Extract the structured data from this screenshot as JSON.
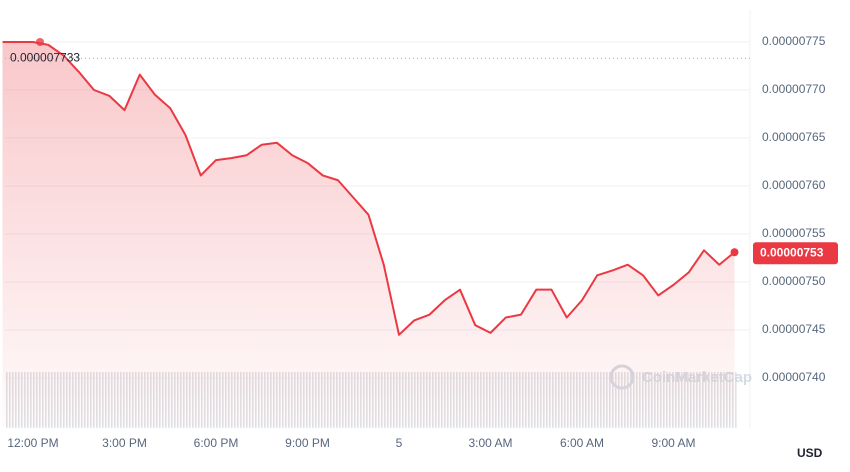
{
  "chart_data": {
    "type": "line",
    "categories": [
      null,
      null,
      "12:00 PM",
      null,
      null,
      null,
      null,
      null,
      "3:00 PM",
      null,
      null,
      null,
      null,
      null,
      "6:00 PM",
      null,
      null,
      null,
      null,
      null,
      "9:00 PM",
      null,
      null,
      null,
      null,
      null,
      "5",
      null,
      null,
      null,
      null,
      null,
      "3:00 AM",
      null,
      null,
      null,
      null,
      null,
      "6:00 AM",
      null,
      null,
      null,
      null,
      null,
      "9:00 AM",
      null,
      null,
      null,
      null
    ],
    "series": [
      {
        "color": "#ea3943",
        "values": [
          7.75e-06,
          7.75e-06,
          7.75e-06,
          7.747e-06,
          7.736e-06,
          7.719e-06,
          7.7e-06,
          7.694e-06,
          7.679e-06,
          7.716e-06,
          7.695e-06,
          7.681e-06,
          7.653e-06,
          7.611e-06,
          7.627e-06,
          7.629e-06,
          7.632e-06,
          7.643e-06,
          7.645e-06,
          7.632e-06,
          7.624e-06,
          7.611e-06,
          7.606e-06,
          7.588e-06,
          7.57e-06,
          7.518e-06,
          7.445e-06,
          7.46e-06,
          7.466e-06,
          7.481e-06,
          7.492e-06,
          7.455e-06,
          7.447e-06,
          7.463e-06,
          7.466e-06,
          7.492e-06,
          7.492e-06,
          7.463e-06,
          7.481e-06,
          7.507e-06,
          7.512e-06,
          7.518e-06,
          7.507e-06,
          7.486e-06,
          7.497e-06,
          7.51e-06,
          7.533e-06,
          7.518e-06,
          7.531e-06
        ]
      }
    ],
    "ylim": [
      7.35e-06,
      7.78e-06
    ],
    "yticks": [
      {
        "value": 7.4e-06,
        "label": "0.00000740"
      },
      {
        "value": 7.45e-06,
        "label": "0.00000745"
      },
      {
        "value": 7.5e-06,
        "label": "0.00000750"
      },
      {
        "value": 7.55e-06,
        "label": "0.00000755"
      },
      {
        "value": 7.6e-06,
        "label": "0.00000760"
      },
      {
        "value": 7.65e-06,
        "label": "0.00000765"
      },
      {
        "value": 7.7e-06,
        "label": "0.00000770"
      },
      {
        "value": 7.75e-06,
        "label": "0.00000775"
      }
    ],
    "annotations": [
      {
        "value": 7.733e-06,
        "label": "0.000007733"
      },
      {
        "value": 7.53e-06,
        "label": "0.00000753"
      }
    ],
    "grid": true,
    "y_unit": "USD",
    "watermark": "CoinMarketCap"
  }
}
